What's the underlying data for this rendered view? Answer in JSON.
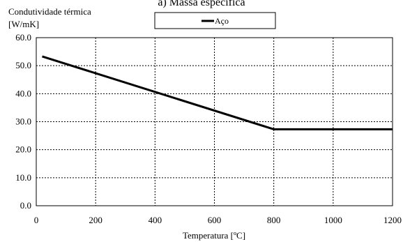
{
  "chart_data": {
    "type": "line",
    "title": "a) Massa específica",
    "ylabel_line1": "Condutividade térmica",
    "ylabel_line2": "[W/mK]",
    "xlabel": "Temperatura [ºC]",
    "xlim": [
      0,
      1200
    ],
    "ylim": [
      0,
      60
    ],
    "x_ticks": [
      0,
      200,
      400,
      600,
      800,
      1000,
      1200
    ],
    "y_ticks": [
      "0.0",
      "10.0",
      "20.0",
      "30.0",
      "40.0",
      "50.0",
      "60.0"
    ],
    "grid": true,
    "legend_position": "top-center",
    "series": [
      {
        "name": "Aço",
        "color": "#000000",
        "x": [
          20,
          800,
          1200
        ],
        "y": [
          53.3,
          27.3,
          27.3
        ]
      }
    ]
  }
}
